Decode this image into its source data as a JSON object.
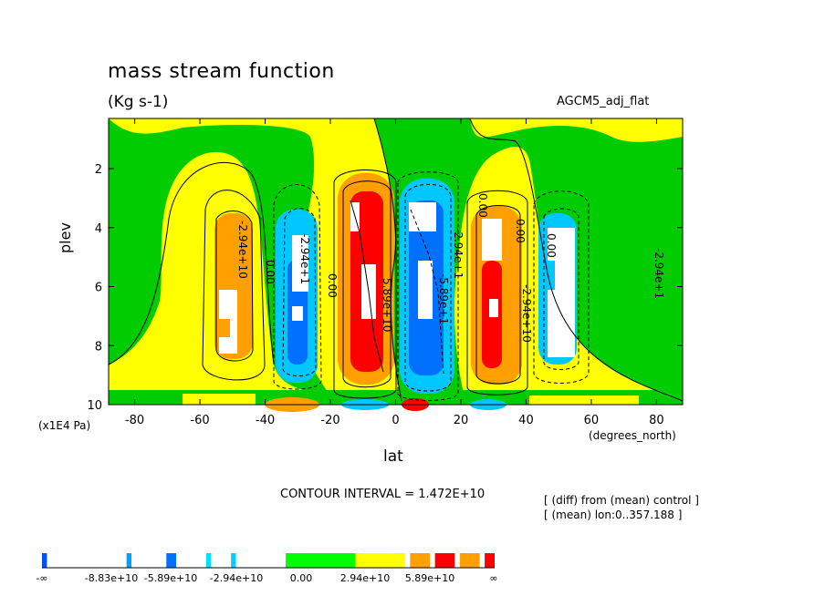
{
  "header": {
    "title": "mass stream function",
    "units": "(Kg s-1)",
    "run_name": "AGCM5_adj_flat"
  },
  "footer": {
    "contour_interval": "CONTOUR INTERVAL = 1.472E+10",
    "note_line1": "[ (diff) from (mean) control ]",
    "note_line2": "[ (mean) lon:0..357.188 ]"
  },
  "chart_data": {
    "type": "heatmap",
    "title": "mass stream function",
    "subtitle": "(Kg s-1)",
    "xlabel": "lat",
    "x_unit": "(degrees_north)",
    "ylabel": "plev",
    "y_unit": "(x1E4 Pa)",
    "xlim": [
      -88,
      88
    ],
    "ylim": [
      10,
      0.3
    ],
    "y_inverted": true,
    "x_ticks": [
      "-80",
      "-60",
      "-40",
      "-20",
      "0",
      "20",
      "40",
      "60",
      "80"
    ],
    "x_tick_values": [
      -80,
      -60,
      -40,
      -20,
      0,
      20,
      40,
      60,
      80
    ],
    "y_ticks": [
      "2",
      "4",
      "6",
      "8",
      "10"
    ],
    "y_tick_values": [
      2,
      4,
      6,
      8,
      10
    ],
    "contour_interval": 14720000000.0,
    "contour_labels": [
      "-2.94e+10",
      "0.00",
      "-2.94e+1",
      "0.00",
      "5.89e+10",
      "-5.89e+1",
      "-2.94e+1",
      "0.00",
      "-2.94e+10",
      "0.00",
      "-2.94e+1",
      "0.00"
    ],
    "cells": [
      {
        "lat_center": -50,
        "plev_range": [
          3.2,
          8.8
        ],
        "value": 29400000000.0
      },
      {
        "lat_center": -30,
        "plev_range": [
          3.3,
          8.9
        ],
        "value": -44000000000.0
      },
      {
        "lat_center": -8,
        "plev_range": [
          2.2,
          8.8
        ],
        "value": 88300000000.0
      },
      {
        "lat_center": 7,
        "plev_range": [
          2.2,
          9.2
        ],
        "value": -88300000000.0
      },
      {
        "lat_center": 31,
        "plev_range": [
          2.8,
          8.8
        ],
        "value": 73600000000.0
      },
      {
        "lat_center": 53,
        "plev_range": [
          3.3,
          8.5
        ],
        "value": -44000000000.0
      }
    ],
    "colorbar": {
      "labels": [
        "-∞",
        "-8.83e+10",
        "-5.89e+10",
        "-2.94e+10",
        "0.00",
        "2.94e+10",
        "5.89e+10",
        "∞"
      ],
      "colors": [
        "#0050ff",
        "#ffffff",
        "#00a0ff",
        "#ffffff",
        "#0070ff",
        "#ffffff",
        "#00e0ff",
        "#ffffff",
        "#00d0ff",
        "#ffffff",
        "#00ff00",
        "#ffff00",
        "#ffffff",
        "#ffa000",
        "#ffffff",
        "#ff0000",
        "#ffffff",
        "#ffa000",
        "#ffffff",
        "#ff0000"
      ]
    },
    "colors": {
      "zero_band": "#ffff00",
      "weak_negative": "#00cc00",
      "positive": "#ffa000",
      "strong_positive": "#ff0000",
      "negative": "#00c8ff",
      "strong_negative": "#0070ff"
    },
    "grid": false
  }
}
